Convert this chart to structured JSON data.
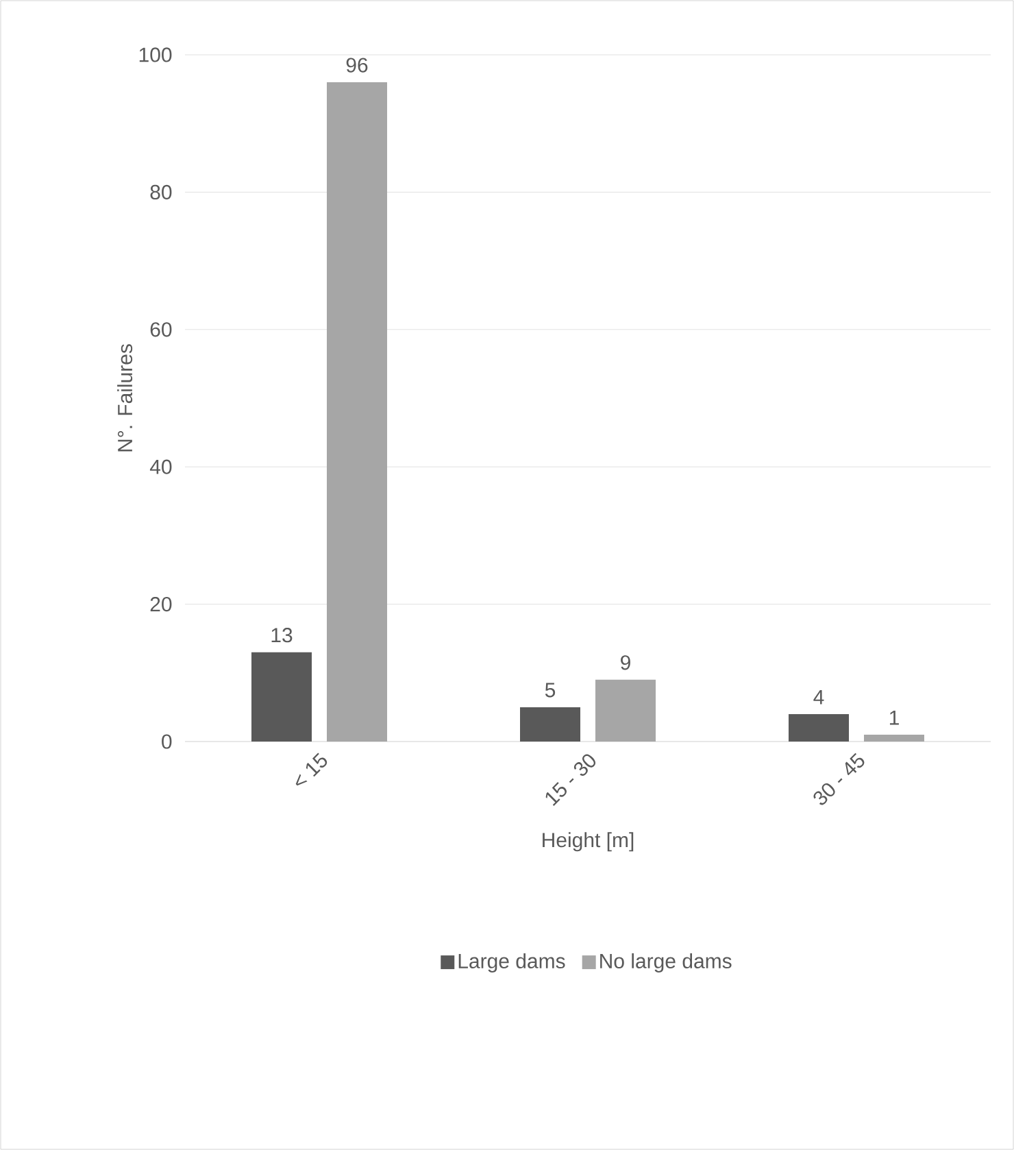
{
  "chart_data": {
    "type": "bar",
    "xlabel": "Height [m]",
    "ylabel": "N°. Failures",
    "categories": [
      "< 15",
      "15 - 30",
      "30 - 45"
    ],
    "series": [
      {
        "name": "Large dams",
        "color": "#595959",
        "values": [
          13,
          5,
          4
        ]
      },
      {
        "name": "No large dams",
        "color": "#a6a6a6",
        "values": [
          96,
          9,
          1
        ]
      }
    ],
    "ylim": [
      0,
      100
    ],
    "yticks": [
      0,
      20,
      40,
      60,
      80,
      100
    ],
    "grid": "y",
    "legend": "bottom",
    "data_labels": true
  }
}
